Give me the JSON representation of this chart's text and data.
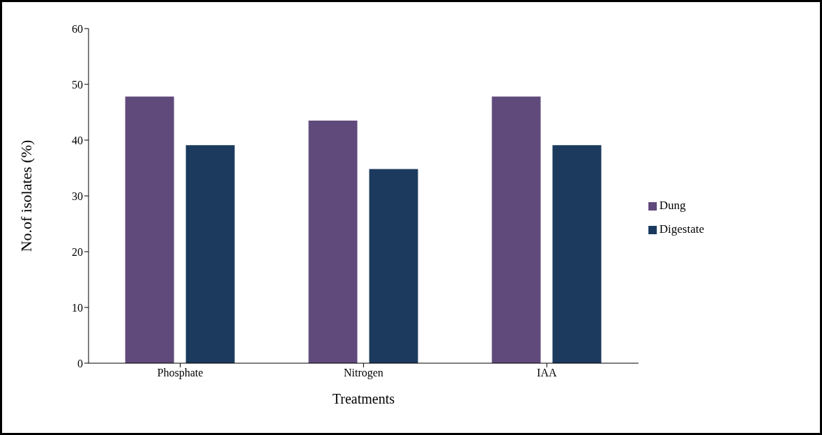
{
  "chart_data": {
    "type": "bar",
    "xlabel": "Treatments",
    "ylabel": "No.of isolates (%)",
    "categories": [
      "Phosphate",
      "Nitrogen",
      "IAA"
    ],
    "series": [
      {
        "name": "Dung",
        "color": "#604a7b",
        "values": [
          47.8,
          43.5,
          47.8
        ]
      },
      {
        "name": "Digestate",
        "color": "#1b3a5e",
        "values": [
          39.1,
          34.8,
          39.1
        ]
      }
    ],
    "ylim": [
      0,
      60
    ],
    "yticks": [
      0,
      10,
      20,
      30,
      40,
      50,
      60
    ],
    "grid": false,
    "legend": "right"
  }
}
